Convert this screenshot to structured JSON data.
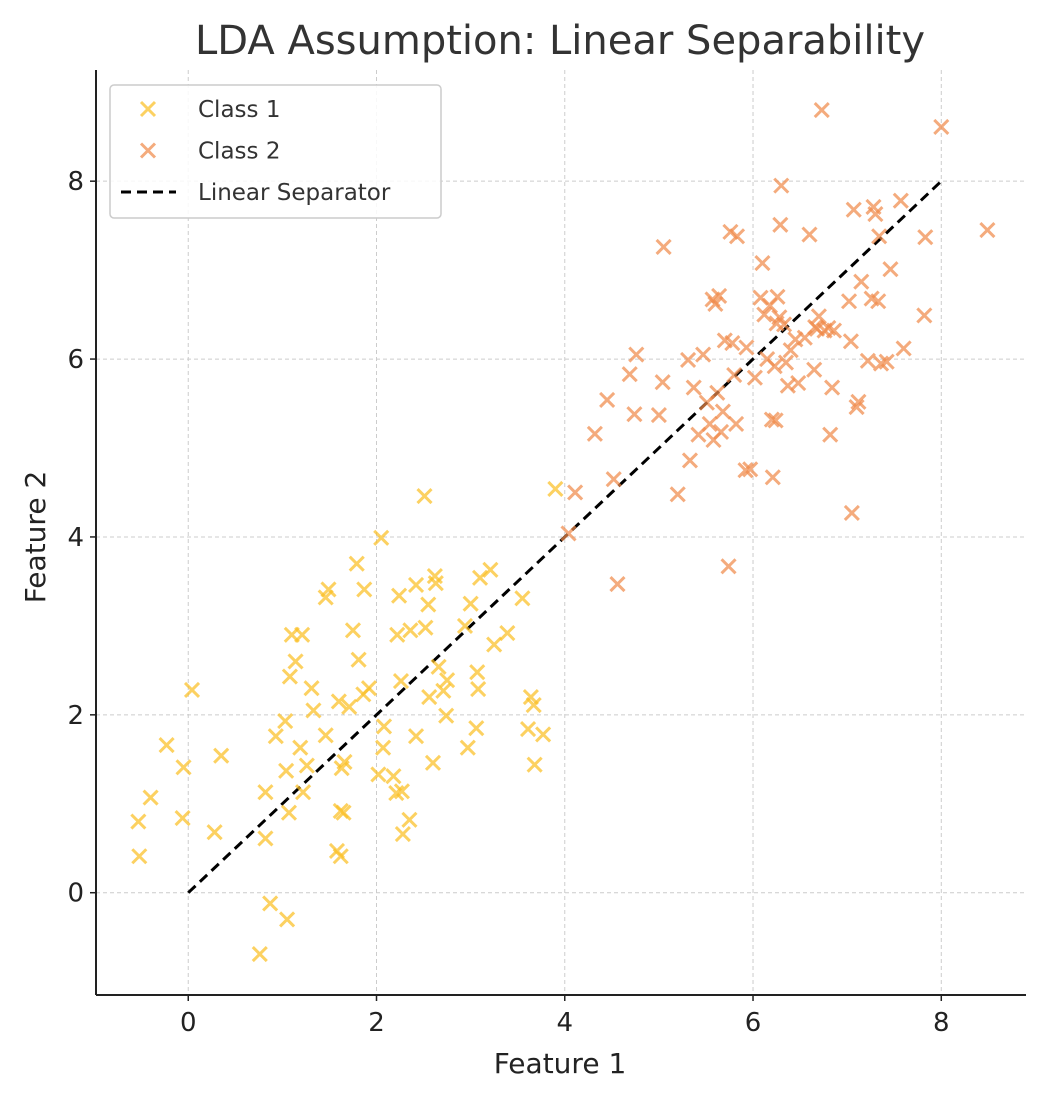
{
  "chart_data": {
    "type": "scatter",
    "title": "LDA Assumption: Linear Separability",
    "xlabel": "Feature 1",
    "ylabel": "Feature 2",
    "xlim": [
      -0.98,
      8.9
    ],
    "ylim": [
      -1.15,
      9.25
    ],
    "xticks": [
      0,
      2,
      4,
      6,
      8
    ],
    "yticks": [
      0,
      2,
      4,
      6,
      8
    ],
    "grid": true,
    "legend_position": "top-left",
    "series": [
      {
        "name": "Class 1",
        "marker": "x",
        "color": "#fbbf24",
        "points": [
          [
            -0.53,
            0.8
          ],
          [
            -0.52,
            0.41
          ],
          [
            -0.4,
            1.07
          ],
          [
            -0.23,
            1.66
          ],
          [
            -0.06,
            0.84
          ],
          [
            -0.05,
            1.41
          ],
          [
            0.04,
            2.28
          ],
          [
            0.28,
            0.68
          ],
          [
            0.35,
            1.54
          ],
          [
            0.76,
            -0.69
          ],
          [
            0.82,
            1.13
          ],
          [
            0.82,
            0.61
          ],
          [
            0.87,
            -0.12
          ],
          [
            0.93,
            1.76
          ],
          [
            1.03,
            1.93
          ],
          [
            1.04,
            1.37
          ],
          [
            1.05,
            -0.3
          ],
          [
            1.07,
            0.9
          ],
          [
            1.08,
            2.43
          ],
          [
            1.1,
            2.9
          ],
          [
            1.14,
            2.6
          ],
          [
            1.19,
            1.63
          ],
          [
            1.21,
            2.9
          ],
          [
            1.22,
            1.13
          ],
          [
            1.26,
            1.43
          ],
          [
            1.31,
            2.3
          ],
          [
            1.33,
            2.05
          ],
          [
            1.46,
            1.77
          ],
          [
            1.46,
            3.32
          ],
          [
            1.49,
            3.41
          ],
          [
            1.58,
            0.47
          ],
          [
            1.6,
            2.15
          ],
          [
            1.62,
            0.92
          ],
          [
            1.62,
            0.41
          ],
          [
            1.63,
            1.4
          ],
          [
            1.65,
            0.9
          ],
          [
            1.66,
            1.47
          ],
          [
            1.71,
            2.09
          ],
          [
            1.75,
            2.95
          ],
          [
            1.79,
            3.7
          ],
          [
            1.81,
            2.62
          ],
          [
            1.86,
            2.23
          ],
          [
            1.87,
            3.41
          ],
          [
            1.92,
            2.3
          ],
          [
            2.02,
            1.33
          ],
          [
            2.05,
            3.99
          ],
          [
            2.07,
            1.63
          ],
          [
            2.08,
            1.87
          ],
          [
            2.18,
            1.31
          ],
          [
            2.21,
            1.12
          ],
          [
            2.22,
            2.9
          ],
          [
            2.24,
            3.34
          ],
          [
            2.26,
            2.38
          ],
          [
            2.27,
            1.14
          ],
          [
            2.28,
            0.66
          ],
          [
            2.35,
            0.82
          ],
          [
            2.36,
            2.95
          ],
          [
            2.42,
            1.76
          ],
          [
            2.42,
            3.46
          ],
          [
            2.51,
            4.46
          ],
          [
            2.52,
            2.98
          ],
          [
            2.55,
            3.24
          ],
          [
            2.56,
            2.2
          ],
          [
            2.6,
            1.46
          ],
          [
            2.62,
            3.56
          ],
          [
            2.63,
            3.48
          ],
          [
            2.66,
            2.54
          ],
          [
            2.71,
            2.27
          ],
          [
            2.74,
            1.99
          ],
          [
            2.75,
            2.39
          ],
          [
            2.94,
            3.0
          ],
          [
            2.97,
            1.63
          ],
          [
            3.0,
            3.25
          ],
          [
            3.06,
            1.85
          ],
          [
            3.07,
            2.48
          ],
          [
            3.08,
            2.29
          ],
          [
            3.1,
            3.54
          ],
          [
            3.21,
            3.63
          ],
          [
            3.25,
            2.79
          ],
          [
            3.39,
            2.92
          ],
          [
            3.55,
            3.31
          ],
          [
            3.61,
            1.84
          ],
          [
            3.64,
            2.2
          ],
          [
            3.67,
            2.11
          ],
          [
            3.68,
            1.44
          ],
          [
            3.77,
            1.78
          ],
          [
            3.9,
            4.54
          ]
        ]
      },
      {
        "name": "Class 2",
        "marker": "x",
        "color": "#f08a4b",
        "points": [
          [
            4.04,
            4.04
          ],
          [
            4.11,
            4.5
          ],
          [
            4.32,
            5.16
          ],
          [
            4.45,
            5.54
          ],
          [
            4.52,
            4.65
          ],
          [
            4.56,
            3.47
          ],
          [
            4.69,
            5.83
          ],
          [
            4.74,
            5.38
          ],
          [
            4.76,
            6.05
          ],
          [
            5.0,
            5.37
          ],
          [
            5.04,
            5.74
          ],
          [
            5.05,
            7.26
          ],
          [
            5.2,
            4.48
          ],
          [
            5.31,
            5.99
          ],
          [
            5.33,
            4.86
          ],
          [
            5.37,
            5.68
          ],
          [
            5.42,
            5.15
          ],
          [
            5.47,
            6.05
          ],
          [
            5.51,
            5.51
          ],
          [
            5.54,
            5.27
          ],
          [
            5.57,
            6.67
          ],
          [
            5.58,
            5.09
          ],
          [
            5.6,
            6.62
          ],
          [
            5.62,
            5.62
          ],
          [
            5.64,
            6.71
          ],
          [
            5.66,
            5.18
          ],
          [
            5.68,
            5.41
          ],
          [
            5.7,
            6.21
          ],
          [
            5.74,
            3.67
          ],
          [
            5.76,
            7.43
          ],
          [
            5.78,
            6.18
          ],
          [
            5.8,
            5.82
          ],
          [
            5.82,
            5.27
          ],
          [
            5.83,
            7.38
          ],
          [
            5.92,
            4.75
          ],
          [
            5.93,
            6.13
          ],
          [
            5.97,
            4.76
          ],
          [
            6.02,
            5.79
          ],
          [
            6.08,
            6.69
          ],
          [
            6.1,
            7.08
          ],
          [
            6.12,
            6.5
          ],
          [
            6.15,
            6.0
          ],
          [
            6.18,
            6.6
          ],
          [
            6.2,
            5.32
          ],
          [
            6.21,
            4.67
          ],
          [
            6.23,
            5.92
          ],
          [
            6.24,
            5.31
          ],
          [
            6.25,
            6.4
          ],
          [
            6.26,
            6.7
          ],
          [
            6.28,
            6.47
          ],
          [
            6.29,
            7.51
          ],
          [
            6.3,
            7.95
          ],
          [
            6.33,
            6.39
          ],
          [
            6.35,
            5.96
          ],
          [
            6.37,
            5.7
          ],
          [
            6.4,
            6.1
          ],
          [
            6.45,
            6.22
          ],
          [
            6.48,
            5.73
          ],
          [
            6.55,
            6.24
          ],
          [
            6.6,
            7.4
          ],
          [
            6.65,
            5.88
          ],
          [
            6.68,
            6.34
          ],
          [
            6.7,
            6.48
          ],
          [
            6.73,
            8.8
          ],
          [
            6.76,
            6.32
          ],
          [
            6.8,
            6.35
          ],
          [
            6.82,
            5.15
          ],
          [
            6.84,
            5.68
          ],
          [
            6.86,
            6.32
          ],
          [
            7.02,
            6.65
          ],
          [
            7.04,
            6.2
          ],
          [
            7.05,
            4.27
          ],
          [
            7.07,
            7.68
          ],
          [
            7.1,
            5.46
          ],
          [
            7.12,
            5.52
          ],
          [
            7.15,
            6.87
          ],
          [
            7.22,
            5.98
          ],
          [
            7.26,
            6.68
          ],
          [
            7.28,
            7.71
          ],
          [
            7.3,
            7.63
          ],
          [
            7.33,
            6.65
          ],
          [
            7.34,
            7.38
          ],
          [
            7.36,
            5.95
          ],
          [
            7.42,
            5.97
          ],
          [
            7.46,
            7.01
          ],
          [
            7.57,
            7.78
          ],
          [
            7.6,
            6.12
          ],
          [
            7.82,
            6.49
          ],
          [
            7.83,
            7.37
          ],
          [
            8.0,
            8.61
          ],
          [
            8.49,
            7.45
          ],
          [
            6.66,
            6.36
          ]
        ]
      }
    ],
    "lines": [
      {
        "name": "Linear Separator",
        "style": "dashed",
        "color": "#000000",
        "x": [
          0,
          8
        ],
        "y": [
          0,
          8
        ]
      }
    ]
  }
}
